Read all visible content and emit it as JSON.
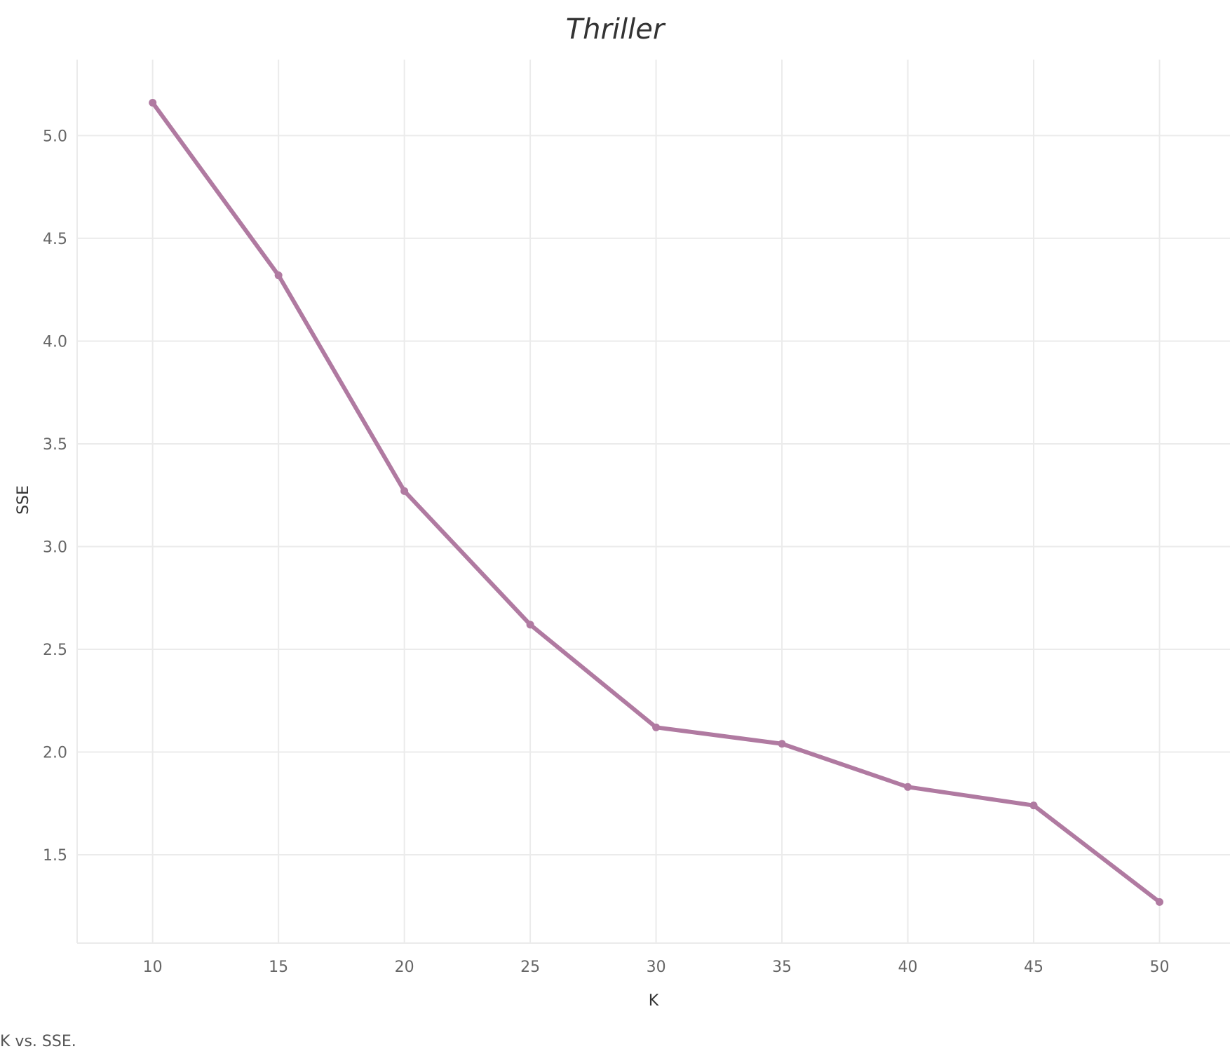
{
  "chart_data": {
    "type": "line",
    "title": "Thriller",
    "xlabel": "K",
    "ylabel": "SSE",
    "x": [
      10,
      15,
      20,
      25,
      30,
      35,
      40,
      45,
      50
    ],
    "series": [
      {
        "values": [
          5.16,
          4.32,
          3.27,
          2.62,
          2.12,
          2.04,
          1.83,
          1.74,
          1.27
        ]
      }
    ],
    "xticks": [
      10,
      15,
      20,
      25,
      30,
      35,
      40,
      45,
      50
    ],
    "yticks": [
      1.5,
      2.0,
      2.5,
      3.0,
      3.5,
      4.0,
      4.5,
      5.0
    ],
    "ytick_labels": [
      "1.5",
      "2.0",
      "2.5",
      "3.0",
      "3.5",
      "4.0",
      "4.5",
      "5.0"
    ],
    "xlim": [
      7,
      52.8
    ],
    "ylim": [
      1.07,
      5.37
    ],
    "grid": true,
    "line_color": "#b07aa1"
  },
  "caption": "K vs. SSE."
}
